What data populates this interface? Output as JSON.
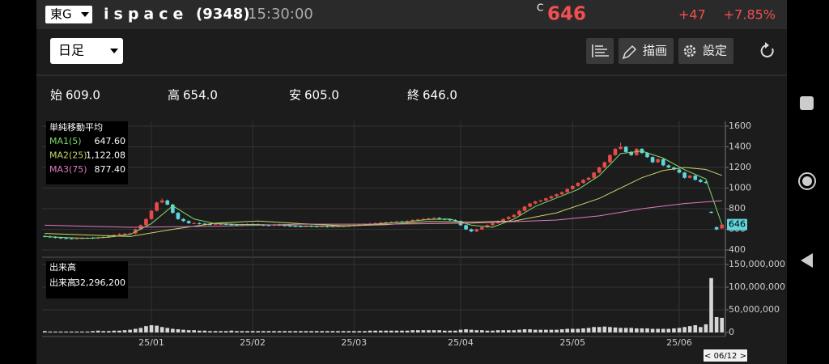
{
  "header": {
    "market": "東G",
    "name": "ispace",
    "code": "(9348)",
    "time": "15:30:00",
    "price_mark": "C",
    "price": "646",
    "change": "+47",
    "change_pct": "+7.85%"
  },
  "toolbar": {
    "period": "日足",
    "draw": "描画",
    "settings": "設定"
  },
  "summary": [
    {
      "label": "始",
      "value": "609.0"
    },
    {
      "label": "高",
      "value": "654.0"
    },
    {
      "label": "安",
      "value": "605.0"
    },
    {
      "label": "終",
      "value": "646.0"
    }
  ],
  "chart_data": {
    "type": "candlestick",
    "up_color": "#e84a4a",
    "down_color": "#5fd6dc",
    "volume_color": "#d6d6d6",
    "legend_title": "単純移動平均",
    "volume_title": "出来高",
    "volume_name": "出来高",
    "volume_label": "32,296,200",
    "cursor_label": "< 06/12 >",
    "ylim": [
      350,
      1650
    ],
    "yticks": [
      400,
      600,
      800,
      1000,
      1200,
      1400,
      1600
    ],
    "volume_ylim": [
      0,
      160000000
    ],
    "volume_yticks": [
      0,
      {
        "value": 50000000,
        "label": "50,000,000"
      },
      {
        "value": 100000000,
        "label": "100,000,000"
      },
      {
        "value": 150000000,
        "label": "150,000,000"
      }
    ],
    "categories": [
      null,
      null,
      null,
      null,
      null,
      null,
      null,
      null,
      null,
      null,
      null,
      null,
      null,
      null,
      null,
      null,
      null,
      null,
      null,
      null,
      "25/01",
      null,
      null,
      null,
      null,
      null,
      null,
      null,
      null,
      null,
      null,
      null,
      null,
      null,
      null,
      null,
      null,
      null,
      null,
      "25/02",
      null,
      null,
      null,
      null,
      null,
      null,
      null,
      null,
      null,
      null,
      null,
      null,
      null,
      null,
      null,
      null,
      null,
      null,
      "25/03",
      null,
      null,
      null,
      null,
      null,
      null,
      null,
      null,
      null,
      null,
      null,
      null,
      null,
      null,
      null,
      null,
      null,
      null,
      null,
      "25/04",
      null,
      null,
      null,
      null,
      null,
      null,
      null,
      null,
      null,
      null,
      null,
      null,
      null,
      null,
      null,
      null,
      null,
      null,
      null,
      null,
      "25/05",
      null,
      null,
      null,
      null,
      null,
      null,
      null,
      null,
      null,
      null,
      null,
      null,
      null,
      null,
      null,
      null,
      null,
      null,
      null,
      "25/06",
      null,
      null,
      null,
      null,
      null,
      null,
      null,
      null
    ],
    "ohlc": [
      [
        535,
        543,
        522,
        530
      ],
      [
        530,
        538,
        517,
        525
      ],
      [
        525,
        533,
        512,
        520
      ],
      [
        520,
        528,
        507,
        515
      ],
      [
        515,
        523,
        504,
        512
      ],
      [
        512,
        520,
        502,
        510
      ],
      [
        510,
        520,
        502,
        512
      ],
      [
        512,
        523,
        504,
        515
      ],
      [
        515,
        526,
        507,
        518
      ],
      [
        518,
        526,
        507,
        515
      ],
      [
        515,
        528,
        507,
        520
      ],
      [
        520,
        533,
        512,
        525
      ],
      [
        525,
        543,
        517,
        535
      ],
      [
        535,
        553,
        527,
        545
      ],
      [
        545,
        563,
        537,
        555
      ],
      [
        555,
        566,
        547,
        558
      ],
      [
        558,
        568,
        550,
        560
      ],
      [
        560,
        608,
        552,
        600
      ],
      [
        600,
        648,
        592,
        640
      ],
      [
        640,
        708,
        632,
        700
      ],
      [
        700,
        788,
        692,
        780
      ],
      [
        780,
        868,
        772,
        860
      ],
      [
        860,
        900,
        852,
        880
      ],
      [
        880,
        888,
        832,
        840
      ],
      [
        840,
        848,
        752,
        760
      ],
      [
        760,
        768,
        692,
        700
      ],
      [
        700,
        708,
        672,
        680
      ],
      [
        680,
        688,
        652,
        660
      ],
      [
        660,
        668,
        652,
        660
      ],
      [
        660,
        668,
        647,
        655
      ],
      [
        655,
        663,
        642,
        650
      ],
      [
        650,
        658,
        640,
        648
      ],
      [
        648,
        658,
        640,
        650
      ],
      [
        650,
        660,
        642,
        652
      ],
      [
        652,
        660,
        640,
        648
      ],
      [
        648,
        656,
        637,
        645
      ],
      [
        645,
        653,
        632,
        640
      ],
      [
        640,
        653,
        632,
        645
      ],
      [
        645,
        658,
        637,
        650
      ],
      [
        650,
        658,
        640,
        648
      ],
      [
        648,
        656,
        634,
        642
      ],
      [
        642,
        650,
        632,
        640
      ],
      [
        640,
        648,
        630,
        638
      ],
      [
        638,
        653,
        630,
        645
      ],
      [
        645,
        653,
        632,
        640
      ],
      [
        640,
        648,
        627,
        635
      ],
      [
        635,
        643,
        624,
        632
      ],
      [
        632,
        640,
        622,
        630
      ],
      [
        630,
        638,
        620,
        628
      ],
      [
        628,
        640,
        620,
        632
      ],
      [
        632,
        640,
        622,
        630
      ],
      [
        630,
        638,
        620,
        628
      ],
      [
        628,
        638,
        620,
        630
      ],
      [
        630,
        638,
        617,
        625
      ],
      [
        625,
        636,
        617,
        628
      ],
      [
        628,
        638,
        620,
        630
      ],
      [
        630,
        640,
        622,
        632
      ],
      [
        632,
        643,
        624,
        635
      ],
      [
        635,
        648,
        627,
        640
      ],
      [
        640,
        653,
        632,
        645
      ],
      [
        645,
        658,
        637,
        650
      ],
      [
        650,
        663,
        642,
        655
      ],
      [
        655,
        668,
        647,
        660
      ],
      [
        660,
        673,
        652,
        665
      ],
      [
        665,
        676,
        657,
        668
      ],
      [
        668,
        678,
        660,
        670
      ],
      [
        670,
        683,
        662,
        675
      ],
      [
        675,
        683,
        664,
        672
      ],
      [
        672,
        688,
        664,
        680
      ],
      [
        680,
        698,
        672,
        690
      ],
      [
        690,
        703,
        682,
        695
      ],
      [
        695,
        708,
        687,
        700
      ],
      [
        700,
        713,
        692,
        705
      ],
      [
        705,
        718,
        697,
        710
      ],
      [
        710,
        718,
        692,
        700
      ],
      [
        700,
        708,
        687,
        695
      ],
      [
        695,
        703,
        682,
        690
      ],
      [
        690,
        698,
        672,
        680
      ],
      [
        680,
        688,
        632,
        640
      ],
      [
        640,
        648,
        592,
        600
      ],
      [
        600,
        608,
        572,
        580
      ],
      [
        580,
        608,
        572,
        600
      ],
      [
        600,
        628,
        592,
        620
      ],
      [
        620,
        648,
        612,
        640
      ],
      [
        640,
        668,
        632,
        660
      ],
      [
        660,
        688,
        652,
        680
      ],
      [
        680,
        708,
        672,
        700
      ],
      [
        700,
        728,
        692,
        720
      ],
      [
        720,
        748,
        712,
        740
      ],
      [
        740,
        788,
        732,
        780
      ],
      [
        780,
        828,
        772,
        820
      ],
      [
        820,
        858,
        812,
        850
      ],
      [
        850,
        878,
        842,
        870
      ],
      [
        870,
        888,
        862,
        880
      ],
      [
        880,
        908,
        872,
        900
      ],
      [
        900,
        928,
        892,
        920
      ],
      [
        920,
        948,
        912,
        940
      ],
      [
        940,
        968,
        932,
        960
      ],
      [
        960,
        998,
        952,
        990
      ],
      [
        990,
        1028,
        982,
        1020
      ],
      [
        1020,
        1058,
        1012,
        1050
      ],
      [
        1050,
        1088,
        1042,
        1080
      ],
      [
        1080,
        1108,
        1072,
        1100
      ],
      [
        1100,
        1158,
        1092,
        1150
      ],
      [
        1150,
        1208,
        1142,
        1200
      ],
      [
        1200,
        1258,
        1192,
        1250
      ],
      [
        1250,
        1328,
        1242,
        1320
      ],
      [
        1320,
        1388,
        1312,
        1380
      ],
      [
        1380,
        1440,
        1372,
        1400
      ],
      [
        1400,
        1408,
        1342,
        1350
      ],
      [
        1350,
        1358,
        1312,
        1320
      ],
      [
        1320,
        1388,
        1312,
        1380
      ],
      [
        1380,
        1388,
        1332,
        1340
      ],
      [
        1340,
        1348,
        1292,
        1300
      ],
      [
        1300,
        1308,
        1242,
        1250
      ],
      [
        1250,
        1288,
        1242,
        1280
      ],
      [
        1280,
        1288,
        1212,
        1220
      ],
      [
        1220,
        1228,
        1192,
        1200
      ],
      [
        1200,
        1208,
        1172,
        1180
      ],
      [
        1180,
        1188,
        1142,
        1150
      ],
      [
        1150,
        1158,
        1092,
        1100
      ],
      [
        1100,
        1128,
        1092,
        1120
      ],
      [
        1120,
        1128,
        1072,
        1080
      ],
      [
        1080,
        1088,
        1052,
        1060
      ],
      [
        1060,
        1068,
        1042,
        1050
      ],
      [
        770,
        775,
        755,
        760
      ],
      [
        620,
        630,
        590,
        600
      ],
      [
        609,
        654,
        605,
        646
      ]
    ],
    "volumes": [
      3000000,
      2000000,
      2000000,
      2000000,
      2000000,
      2000000,
      2000000,
      2000000,
      2000000,
      3000000,
      4000000,
      3000000,
      3000000,
      4000000,
      4000000,
      5000000,
      6000000,
      8000000,
      10000000,
      14000000,
      16000000,
      15000000,
      12000000,
      10000000,
      8000000,
      7000000,
      6000000,
      5000000,
      5000000,
      4000000,
      4000000,
      3000000,
      3000000,
      3000000,
      3000000,
      4000000,
      3000000,
      3000000,
      3000000,
      3000000,
      3000000,
      3000000,
      3000000,
      3000000,
      3000000,
      3000000,
      3000000,
      3000000,
      3000000,
      3000000,
      3000000,
      3000000,
      3000000,
      3000000,
      3000000,
      3000000,
      3000000,
      3000000,
      3000000,
      3000000,
      3000000,
      4000000,
      4000000,
      4000000,
      4000000,
      4000000,
      4000000,
      4000000,
      4000000,
      5000000,
      5000000,
      5000000,
      5000000,
      5000000,
      5000000,
      4000000,
      4000000,
      4000000,
      6000000,
      7000000,
      6000000,
      5000000,
      5000000,
      4000000,
      4000000,
      5000000,
      5000000,
      5000000,
      5000000,
      6000000,
      7000000,
      7000000,
      6000000,
      6000000,
      6000000,
      6000000,
      6000000,
      7000000,
      8000000,
      8000000,
      8000000,
      9000000,
      10000000,
      12000000,
      12000000,
      13000000,
      12000000,
      11000000,
      10000000,
      10000000,
      10000000,
      9000000,
      9000000,
      9000000,
      8000000,
      8000000,
      8000000,
      8000000,
      9000000,
      10000000,
      12000000,
      14000000,
      16000000,
      12000000,
      18000000,
      120000000,
      34000000,
      32296200
    ],
    "series": [
      {
        "name": "MA1(5)",
        "color": "#7ddc6a",
        "latest_label": "647.60",
        "x": [
          0,
          4,
          8,
          12,
          16,
          20,
          24,
          28,
          32,
          36,
          40,
          44,
          48,
          52,
          56,
          60,
          64,
          68,
          72,
          76,
          80,
          84,
          88,
          92,
          96,
          100,
          104,
          108,
          112,
          116,
          120,
          124,
          127
        ],
        "values": [
          530,
          520,
          513,
          523,
          550,
          656,
          828,
          700,
          655,
          648,
          646,
          641,
          632,
          630,
          629,
          642,
          660,
          673,
          696,
          700,
          640,
          620,
          700,
          822,
          904,
          986,
          1120,
          1334,
          1358,
          1290,
          1178,
          1088,
          647.6
        ]
      },
      {
        "name": "MA2(25)",
        "color": "#c8d46a",
        "latest_label": "1,122.08",
        "x": [
          0,
          8,
          16,
          24,
          32,
          40,
          48,
          56,
          64,
          72,
          80,
          88,
          96,
          104,
          112,
          116,
          120,
          124,
          127
        ],
        "values": [
          560,
          545,
          530,
          600,
          660,
          680,
          655,
          635,
          645,
          675,
          670,
          680,
          760,
          900,
          1100,
          1170,
          1200,
          1180,
          1122.08
        ]
      },
      {
        "name": "MA3(75)",
        "color": "#e07ac0",
        "latest_label": "877.40",
        "x": [
          0,
          16,
          32,
          48,
          64,
          80,
          96,
          104,
          112,
          120,
          127
        ],
        "values": [
          640,
          620,
          630,
          650,
          650,
          660,
          690,
          730,
          800,
          850,
          877.4
        ]
      }
    ]
  }
}
